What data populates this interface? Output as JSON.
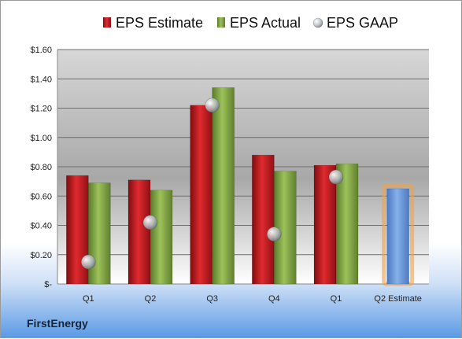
{
  "brand": "FirstEnergy",
  "chart_data": {
    "type": "bar",
    "categories": [
      "Q1",
      "Q2",
      "Q3",
      "Q4",
      "Q1",
      "Q2 Estimate"
    ],
    "series": [
      {
        "name": "EPS Estimate",
        "kind": "bar",
        "color": "#c8161d",
        "values": [
          0.74,
          0.71,
          1.22,
          0.88,
          0.81,
          null
        ]
      },
      {
        "name": "EPS Actual",
        "kind": "bar",
        "color": "#8ab047",
        "values": [
          0.69,
          0.64,
          1.34,
          0.77,
          0.82,
          null
        ]
      },
      {
        "name": "EPS GAAP",
        "kind": "marker",
        "color": "#b9bec4",
        "values": [
          0.15,
          0.42,
          1.22,
          0.34,
          0.73,
          null
        ]
      }
    ],
    "projection": {
      "category": "Q2 Estimate",
      "value": 0.65,
      "color": "#5b8fd3",
      "glow": "#f0a24a"
    },
    "ylim": [
      0,
      1.6
    ],
    "yticks": [
      0,
      0.2,
      0.4,
      0.6,
      0.8,
      1.0,
      1.2,
      1.4,
      1.6
    ],
    "ytick_labels": [
      "$-",
      "$0.20",
      "$0.40",
      "$0.60",
      "$0.80",
      "$1.00",
      "$1.20",
      "$1.40",
      "$1.60"
    ],
    "grid": true,
    "legend_position": "top"
  }
}
